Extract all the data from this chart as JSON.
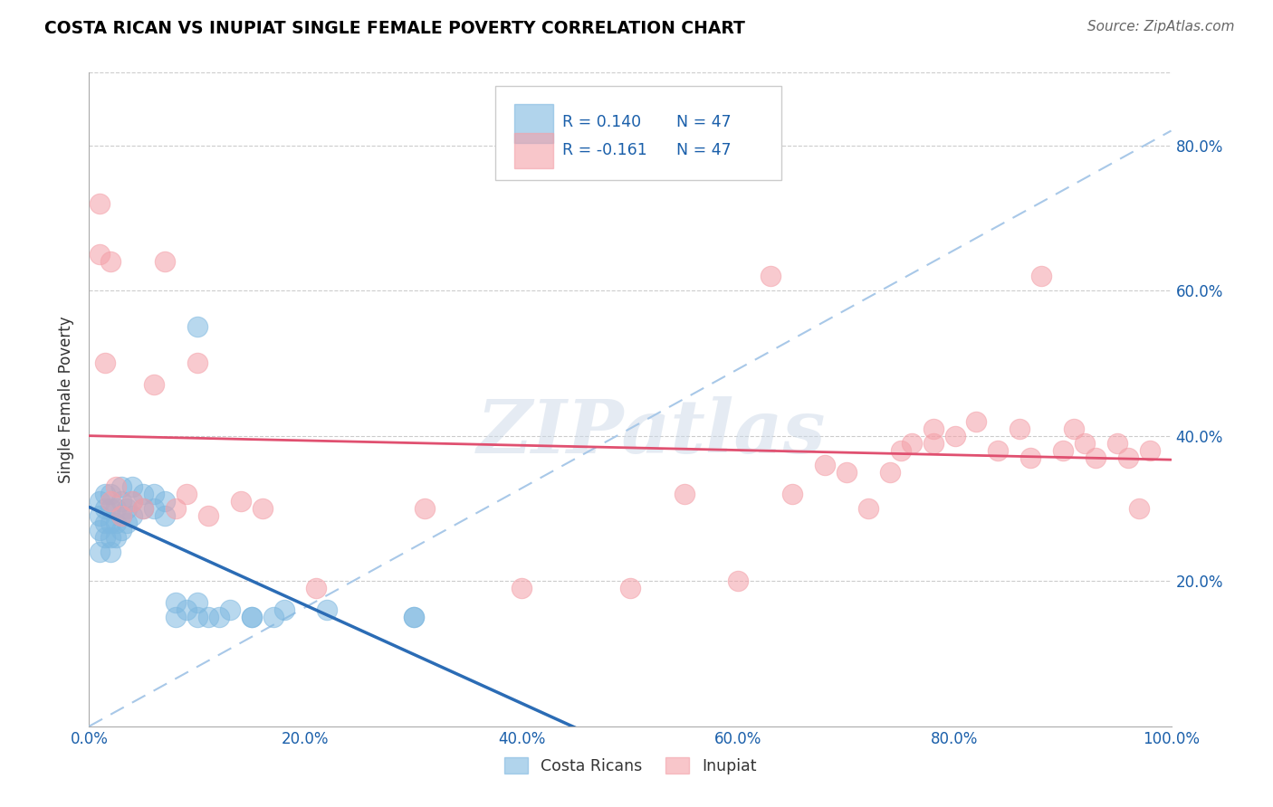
{
  "title": "COSTA RICAN VS INUPIAT SINGLE FEMALE POVERTY CORRELATION CHART",
  "source": "Source: ZipAtlas.com",
  "ylabel": "Single Female Poverty",
  "r_blue": 0.14,
  "r_pink": -0.161,
  "n_blue": 47,
  "n_pink": 47,
  "blue_color": "#7eb8e0",
  "pink_color": "#f4a0a8",
  "blue_line_color": "#2b6cb5",
  "pink_line_color": "#e05070",
  "diag_line_color": "#a8c8e8",
  "blue_x": [
    0.01,
    0.01,
    0.01,
    0.01,
    0.015,
    0.015,
    0.015,
    0.015,
    0.02,
    0.02,
    0.02,
    0.02,
    0.02,
    0.025,
    0.025,
    0.025,
    0.03,
    0.03,
    0.03,
    0.03,
    0.035,
    0.035,
    0.04,
    0.04,
    0.04,
    0.05,
    0.05,
    0.06,
    0.06,
    0.07,
    0.07,
    0.08,
    0.08,
    0.09,
    0.1,
    0.1,
    0.11,
    0.12,
    0.13,
    0.15,
    0.15,
    0.17,
    0.18,
    0.22,
    0.3,
    0.3,
    0.1
  ],
  "blue_y": [
    0.24,
    0.27,
    0.29,
    0.31,
    0.26,
    0.28,
    0.3,
    0.32,
    0.24,
    0.26,
    0.28,
    0.3,
    0.32,
    0.26,
    0.28,
    0.3,
    0.27,
    0.29,
    0.31,
    0.33,
    0.28,
    0.3,
    0.29,
    0.31,
    0.33,
    0.3,
    0.32,
    0.3,
    0.32,
    0.29,
    0.31,
    0.15,
    0.17,
    0.16,
    0.17,
    0.15,
    0.15,
    0.15,
    0.16,
    0.15,
    0.15,
    0.15,
    0.16,
    0.16,
    0.15,
    0.15,
    0.55
  ],
  "pink_x": [
    0.01,
    0.01,
    0.015,
    0.02,
    0.02,
    0.025,
    0.03,
    0.04,
    0.05,
    0.06,
    0.07,
    0.08,
    0.09,
    0.1,
    0.11,
    0.14,
    0.16,
    0.21,
    0.31,
    0.4,
    0.5,
    0.55,
    0.6,
    0.65,
    0.68,
    0.7,
    0.72,
    0.75,
    0.78,
    0.8,
    0.82,
    0.84,
    0.86,
    0.87,
    0.88,
    0.9,
    0.91,
    0.92,
    0.93,
    0.95,
    0.96,
    0.97,
    0.98,
    0.74,
    0.76,
    0.78,
    0.63
  ],
  "pink_y": [
    0.65,
    0.72,
    0.5,
    0.64,
    0.31,
    0.33,
    0.29,
    0.31,
    0.3,
    0.47,
    0.64,
    0.3,
    0.32,
    0.5,
    0.29,
    0.31,
    0.3,
    0.19,
    0.3,
    0.19,
    0.19,
    0.32,
    0.2,
    0.32,
    0.36,
    0.35,
    0.3,
    0.38,
    0.39,
    0.4,
    0.42,
    0.38,
    0.41,
    0.37,
    0.62,
    0.38,
    0.41,
    0.39,
    0.37,
    0.39,
    0.37,
    0.3,
    0.38,
    0.35,
    0.39,
    0.41,
    0.62
  ],
  "watermark": "ZIPatlas",
  "legend_blue_label": "Costa Ricans",
  "legend_pink_label": "Inupiat",
  "xlim": [
    0.0,
    1.0
  ],
  "ylim": [
    0.0,
    0.9
  ],
  "ytick_vals": [
    0.2,
    0.4,
    0.6,
    0.8
  ],
  "ytick_labels": [
    "20.0%",
    "40.0%",
    "60.0%",
    "80.0%"
  ],
  "xtick_vals": [
    0.0,
    0.2,
    0.4,
    0.6,
    0.8,
    1.0
  ],
  "xtick_labels": [
    "0.0%",
    "20.0%",
    "40.0%",
    "60.0%",
    "80.0%",
    "100.0%"
  ]
}
